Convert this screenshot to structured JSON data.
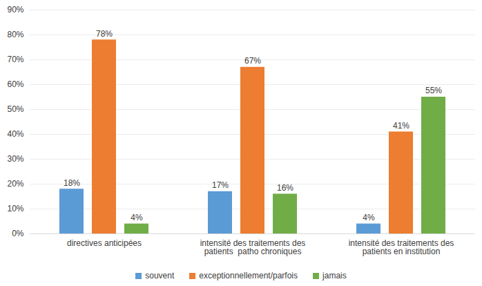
{
  "chart_data": {
    "type": "bar",
    "categories": [
      "directives anticipées",
      "intensité des traitements des\npatients  patho chroniques",
      "intensité des traitements des\npatients en institution"
    ],
    "series": [
      {
        "name": "souvent",
        "color": "#5b9bd5",
        "values": [
          18,
          17,
          4
        ],
        "value_labels": [
          "18%",
          "17%",
          "4%"
        ]
      },
      {
        "name": "exceptionnellement/parfois",
        "color": "#ed7d31",
        "values": [
          78,
          67,
          41
        ],
        "value_labels": [
          "78%",
          "67%",
          "41%"
        ]
      },
      {
        "name": "jamais",
        "color": "#70ad47",
        "values": [
          4,
          16,
          55
        ],
        "value_labels": [
          "4%",
          "16%",
          "55%"
        ]
      }
    ],
    "ylim": [
      0,
      90
    ],
    "yticks": [
      {
        "value": 0,
        "label": "0%"
      },
      {
        "value": 10,
        "label": "10%"
      },
      {
        "value": 20,
        "label": "20%"
      },
      {
        "value": 30,
        "label": "30%"
      },
      {
        "value": 40,
        "label": "40%"
      },
      {
        "value": 50,
        "label": "50%"
      },
      {
        "value": 60,
        "label": "60%"
      },
      {
        "value": 70,
        "label": "70%"
      },
      {
        "value": 80,
        "label": "80%"
      },
      {
        "value": 90,
        "label": "90%"
      }
    ],
    "grid": true,
    "data_labels": true,
    "legend": "bottom"
  }
}
